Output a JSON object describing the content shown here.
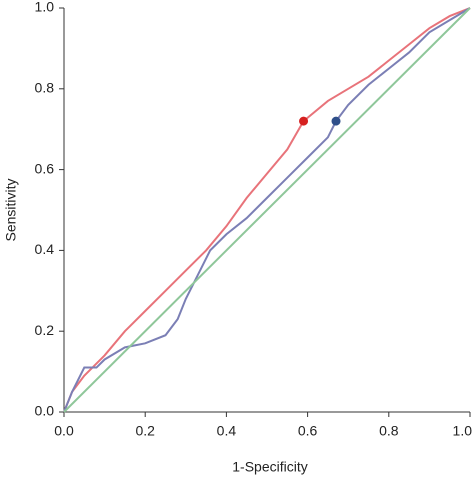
{
  "chart_data": {
    "type": "line",
    "xlabel": "1-Specificity",
    "ylabel": "Sensitivity",
    "xlim": [
      0,
      1.0
    ],
    "ylim": [
      0,
      1.0
    ],
    "xticks": [
      {
        "value": 0,
        "label": "0.0"
      },
      0.2,
      0.4,
      0.6,
      0.8,
      {
        "value": 1.0,
        "label": "1.0"
      }
    ],
    "yticks": [
      {
        "value": 0,
        "label": "0.0"
      },
      0.2,
      0.4,
      0.6,
      0.8,
      {
        "value": 1.0,
        "label": "1.0"
      }
    ],
    "series": [
      {
        "color": "#e8737a",
        "x": [
          0,
          0.02,
          0.05,
          0.1,
          0.15,
          0.2,
          0.25,
          0.3,
          0.35,
          0.4,
          0.45,
          0.5,
          0.55,
          0.59,
          0.65,
          0.7,
          0.75,
          0.8,
          0.85,
          0.9,
          0.95,
          1
        ],
        "values": [
          0,
          0.05,
          0.09,
          0.14,
          0.2,
          0.25,
          0.3,
          0.35,
          0.4,
          0.46,
          0.53,
          0.59,
          0.65,
          0.72,
          0.77,
          0.8,
          0.83,
          0.87,
          0.91,
          0.95,
          0.98,
          1
        ]
      },
      {
        "color": "#7b7fb5",
        "x": [
          0,
          0.02,
          0.03,
          0.05,
          0.08,
          0.1,
          0.15,
          0.2,
          0.25,
          0.28,
          0.3,
          0.33,
          0.36,
          0.4,
          0.45,
          0.5,
          0.55,
          0.6,
          0.65,
          0.67,
          0.7,
          0.75,
          0.8,
          0.85,
          0.9,
          0.95,
          1
        ],
        "values": [
          0,
          0.05,
          0.07,
          0.11,
          0.11,
          0.13,
          0.16,
          0.17,
          0.19,
          0.23,
          0.28,
          0.34,
          0.4,
          0.44,
          0.48,
          0.53,
          0.58,
          0.63,
          0.68,
          0.72,
          0.76,
          0.81,
          0.85,
          0.89,
          0.94,
          0.97,
          1
        ]
      },
      {
        "color": "#8fc79a",
        "x": [
          0,
          1
        ],
        "values": [
          0,
          1
        ]
      }
    ],
    "points": [
      {
        "x": 0.59,
        "y": 0.72,
        "color": "#d62020"
      },
      {
        "x": 0.67,
        "y": 0.72,
        "color": "#2f4f8a"
      }
    ]
  }
}
